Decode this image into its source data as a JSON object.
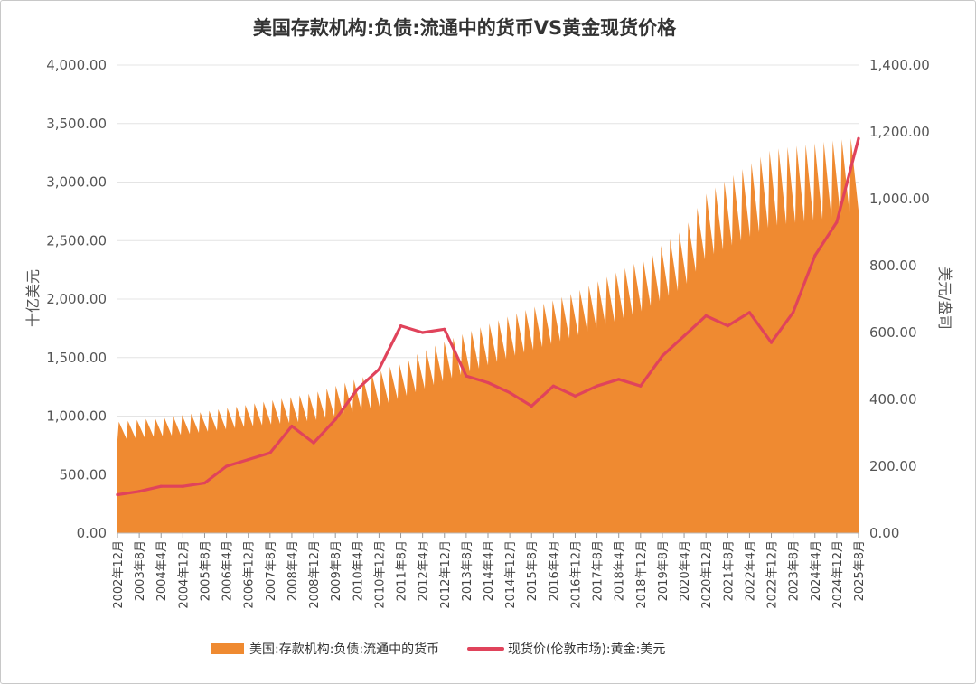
{
  "chart_data": {
    "type": "area+line",
    "title": "美国存款机构:负债:流通中的货币VS黄金现货价格",
    "ylabel_left": "十亿美元",
    "ylabel_right": "美元/盎司",
    "ylim_left": [
      0,
      4000
    ],
    "ylim_right": [
      0,
      1400
    ],
    "yticks_left": [
      "0.00",
      "500.00",
      "1,000.00",
      "1,500.00",
      "2,000.00",
      "2,500.00",
      "3,000.00",
      "3,500.00",
      "4,000.00"
    ],
    "yticks_right": [
      "0.00",
      "200.00",
      "400.00",
      "600.00",
      "800.00",
      "1,000.00",
      "1,200.00",
      "1,400.00"
    ],
    "x_ticks": [
      "2002年12月",
      "2003年8月",
      "2004年4月",
      "2004年12月",
      "2005年8月",
      "2006年4月",
      "2006年12月",
      "2007年8月",
      "2008年4月",
      "2008年12月",
      "2009年8月",
      "2010年4月",
      "2010年12月",
      "2011年8月",
      "2012年4月",
      "2012年12月",
      "2013年8月",
      "2014年4月",
      "2014年12月",
      "2015年8月",
      "2016年4月",
      "2016年12月",
      "2017年8月",
      "2018年4月",
      "2018年12月",
      "2019年8月",
      "2020年4月",
      "2020年12月",
      "2021年8月",
      "2022年4月",
      "2022年12月",
      "2023年8月",
      "2024年4月",
      "2024年12月",
      "2025年8月"
    ],
    "grid": true,
    "legend_position": "bottom",
    "series": [
      {
        "name": "美国:存款机构:负债:流通中的货币",
        "axis": "left",
        "kind": "area",
        "color": "#ef8a31",
        "x": [
          "2002年12月",
          "2004年12月",
          "2006年12月",
          "2008年12月",
          "2010年12月",
          "2012年12月",
          "2014年12月",
          "2016年12月",
          "2018年12月",
          "2020年4月",
          "2020年12月",
          "2022年12月",
          "2024年12月",
          "2025年8月"
        ],
        "base": [
          800,
          840,
          910,
          960,
          1080,
          1300,
          1500,
          1680,
          1890,
          2100,
          2350,
          2620,
          2700,
          2760
        ],
        "peak": [
          950,
          1010,
          1100,
          1200,
          1380,
          1640,
          1860,
          2060,
          2330,
          2600,
          2900,
          3280,
          3360,
          3380
        ]
      },
      {
        "name": "现货价(伦敦市场):黄金:美元",
        "axis": "right",
        "kind": "line",
        "color": "#e0435b",
        "x": [
          "2002年12月",
          "2003年8月",
          "2004年4月",
          "2004年12月",
          "2005年8月",
          "2006年4月",
          "2006年12月",
          "2007年8月",
          "2008年4月",
          "2008年12月",
          "2009年8月",
          "2010年4月",
          "2010年12月",
          "2011年8月",
          "2012年4月",
          "2012年12月",
          "2013年8月",
          "2014年4月",
          "2014年12月",
          "2015年8月",
          "2016年4月",
          "2016年12月",
          "2017年8月",
          "2018年4月",
          "2018年12月",
          "2019年8月",
          "2020年4月",
          "2020年12月",
          "2021年8月",
          "2022年4月",
          "2022年12月",
          "2023年8月",
          "2024年4月",
          "2024年12月",
          "2025年8月"
        ],
        "values": [
          115,
          125,
          140,
          140,
          150,
          200,
          220,
          240,
          320,
          270,
          340,
          430,
          490,
          620,
          600,
          610,
          470,
          450,
          420,
          380,
          440,
          410,
          440,
          460,
          440,
          530,
          590,
          650,
          620,
          660,
          570,
          660,
          830,
          930,
          1180
        ]
      }
    ]
  }
}
